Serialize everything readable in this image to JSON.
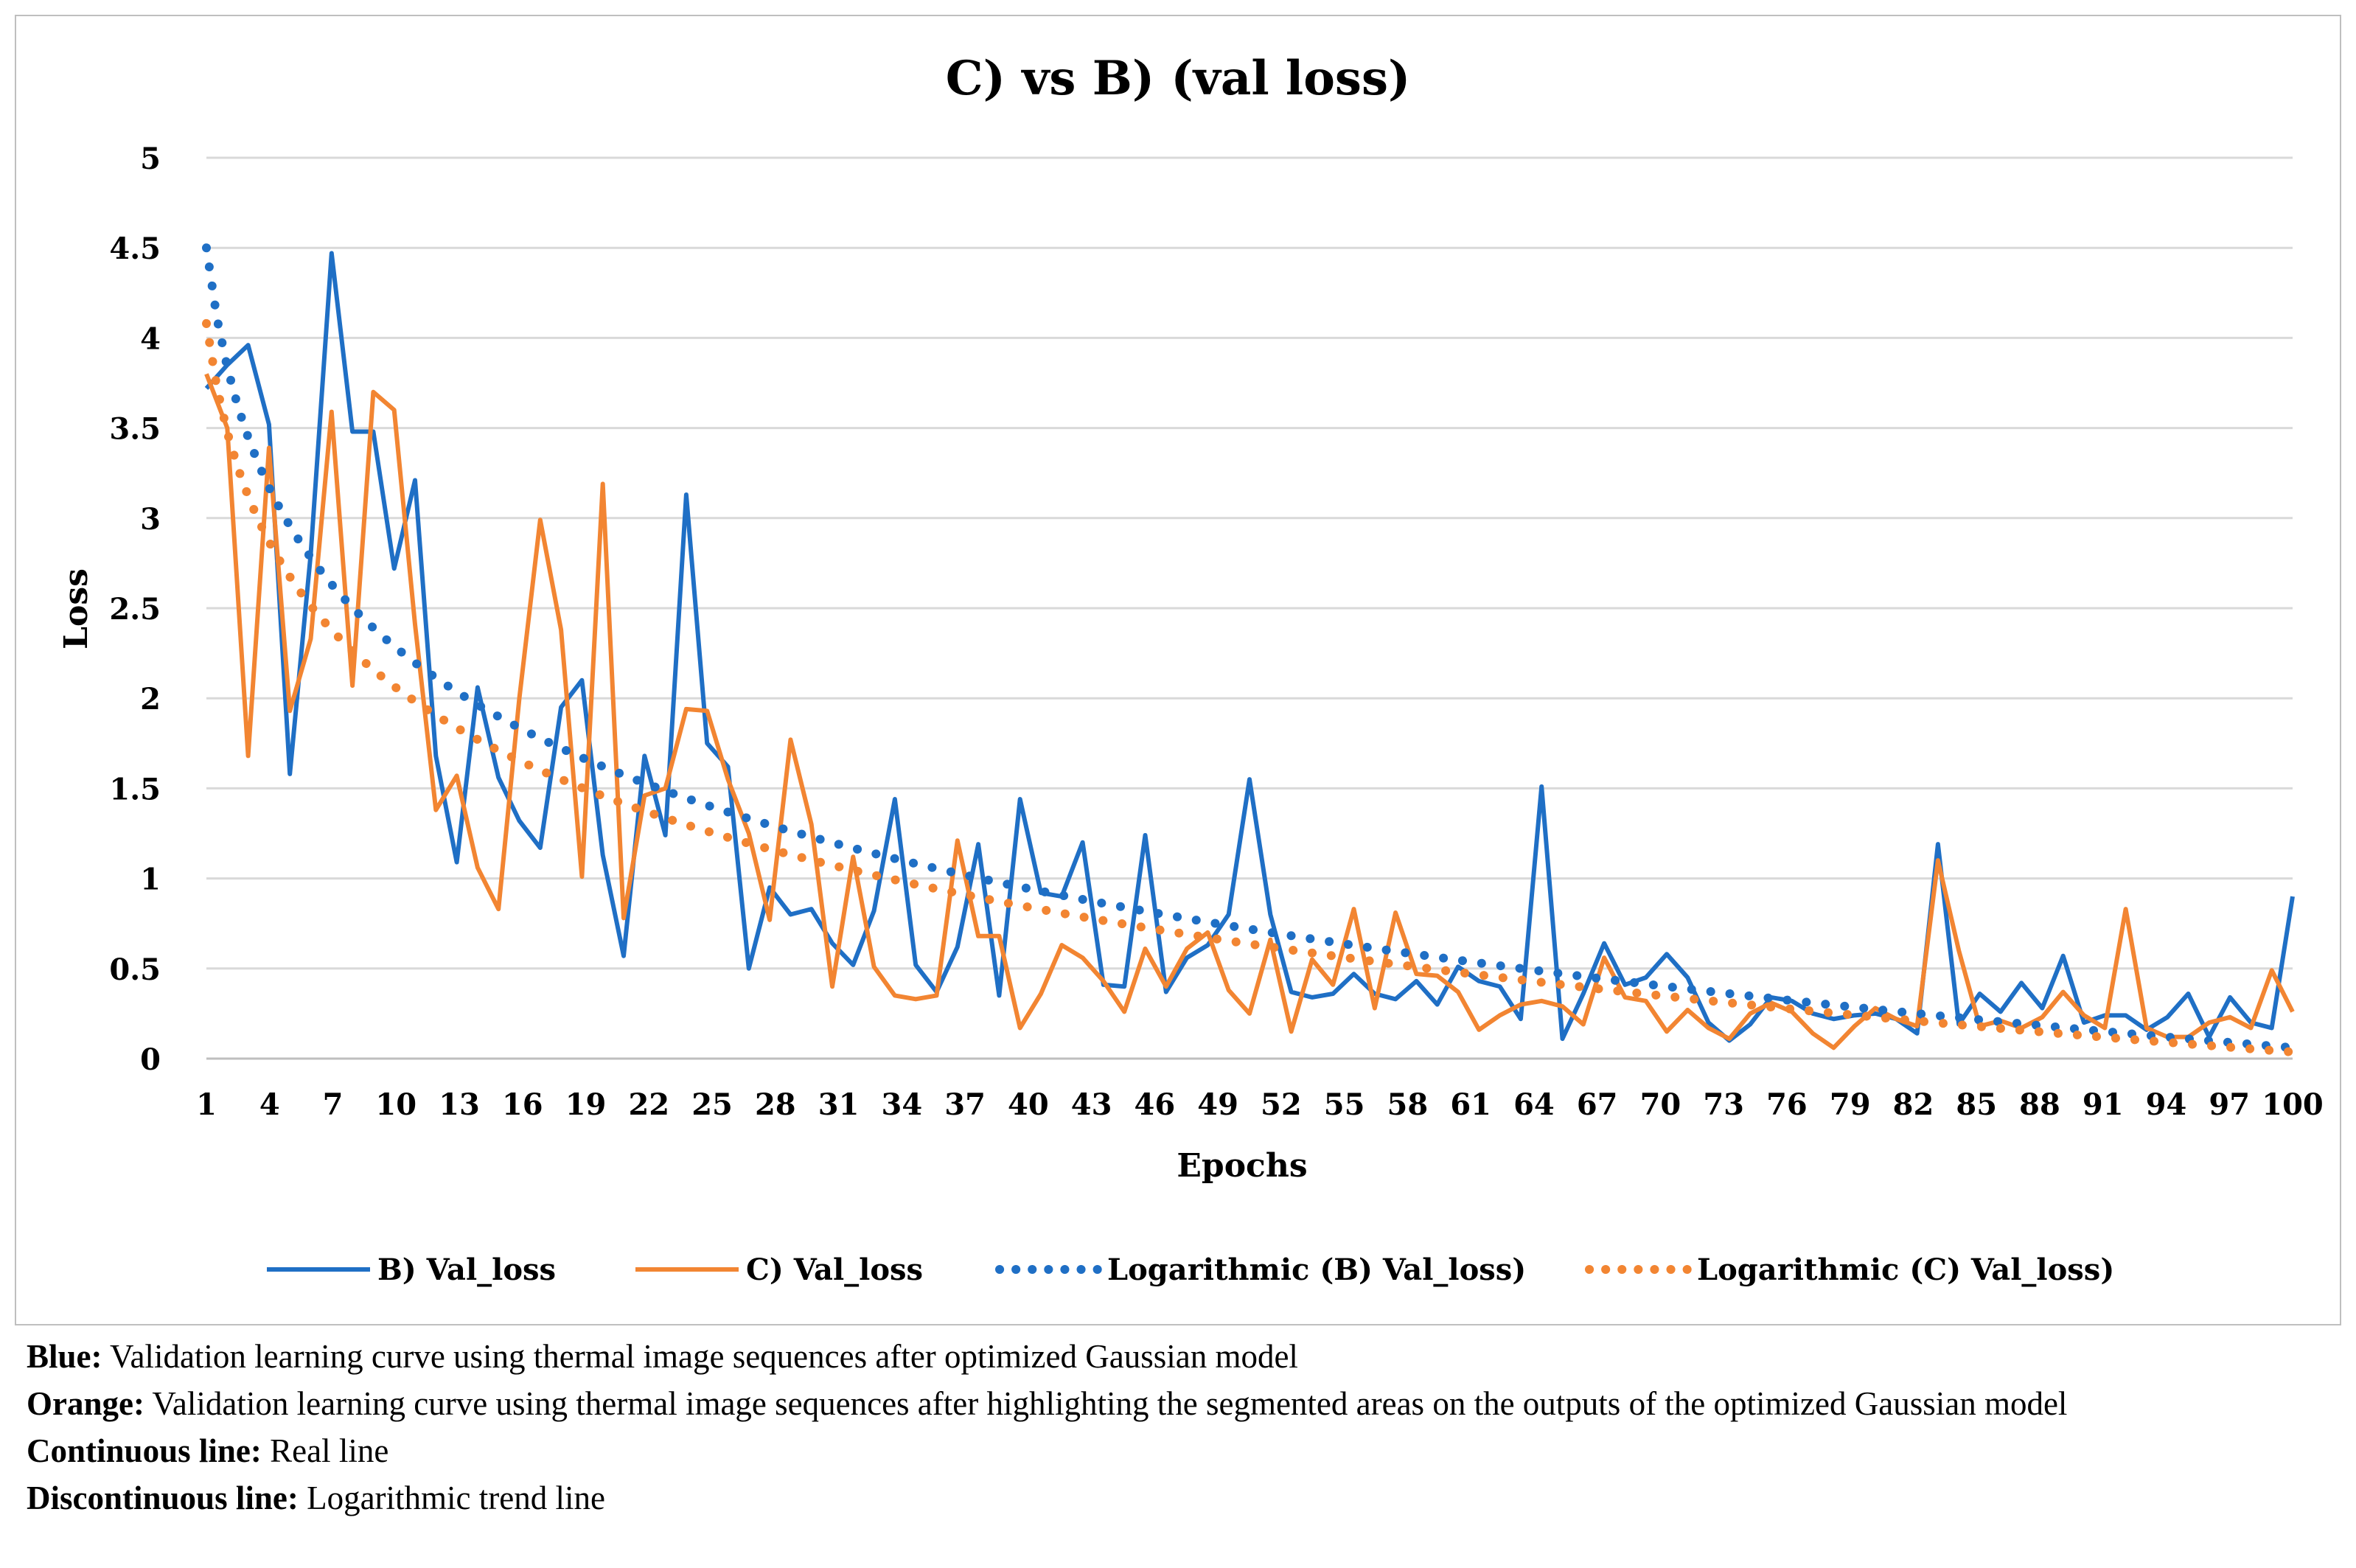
{
  "chart_data": {
    "type": "line",
    "title": "C) vs B) (val loss)",
    "xlabel": "Epochs",
    "ylabel": "Loss",
    "ylim": [
      0,
      5
    ],
    "yticks": [
      "0",
      "0.5",
      "1",
      "1.5",
      "2",
      "2.5",
      "3",
      "3.5",
      "4",
      "4.5",
      "5"
    ],
    "x_range": [
      1,
      100
    ],
    "xticks": [
      "1",
      "4",
      "7",
      "10",
      "13",
      "16",
      "19",
      "22",
      "25",
      "28",
      "31",
      "34",
      "37",
      "40",
      "43",
      "46",
      "49",
      "52",
      "55",
      "58",
      "61",
      "64",
      "67",
      "70",
      "73",
      "76",
      "79",
      "82",
      "85",
      "88",
      "91",
      "94",
      "97",
      "100"
    ],
    "grid": true,
    "legend_position": "bottom",
    "series": [
      {
        "name": "B) Val_loss",
        "color": "#1f6fc5",
        "style": "solid",
        "values": [
          3.72,
          3.85,
          3.96,
          3.52,
          1.58,
          2.8,
          4.47,
          3.48,
          3.48,
          2.72,
          3.21,
          1.68,
          1.09,
          2.06,
          1.56,
          1.32,
          1.17,
          1.95,
          2.1,
          1.13,
          0.57,
          1.68,
          1.24,
          3.13,
          1.75,
          1.62,
          0.5,
          0.95,
          0.8,
          0.83,
          0.64,
          0.52,
          0.82,
          1.44,
          0.52,
          0.37,
          0.62,
          1.19,
          0.35,
          1.44,
          0.92,
          0.9,
          1.2,
          0.41,
          0.4,
          1.24,
          0.37,
          0.56,
          0.63,
          0.8,
          1.55,
          0.8,
          0.37,
          0.34,
          0.36,
          0.47,
          0.36,
          0.33,
          0.43,
          0.3,
          0.51,
          0.43,
          0.4,
          0.22,
          1.51,
          0.11,
          0.36,
          0.64,
          0.41,
          0.45,
          0.58,
          0.45,
          0.2,
          0.1,
          0.19,
          0.34,
          0.32,
          0.25,
          0.22,
          0.24,
          0.25,
          0.22,
          0.14,
          1.19,
          0.19,
          0.36,
          0.26,
          0.42,
          0.28,
          0.57,
          0.2,
          0.24,
          0.24,
          0.16,
          0.23,
          0.36,
          0.12,
          0.34,
          0.2,
          0.17,
          0.9
        ]
      },
      {
        "name": "C) Val_loss",
        "color": "#f28532",
        "style": "solid",
        "values": [
          3.8,
          3.5,
          1.68,
          3.39,
          1.93,
          2.33,
          3.59,
          2.07,
          3.7,
          3.6,
          2.41,
          1.38,
          1.57,
          1.06,
          0.83,
          2.0,
          2.99,
          2.38,
          1.01,
          3.19,
          0.78,
          1.46,
          1.5,
          1.94,
          1.93,
          1.55,
          1.25,
          0.77,
          1.77,
          1.3,
          0.4,
          1.12,
          0.51,
          0.35,
          0.33,
          0.35,
          1.21,
          0.68,
          0.68,
          0.17,
          0.36,
          0.63,
          0.56,
          0.43,
          0.26,
          0.61,
          0.4,
          0.61,
          0.7,
          0.38,
          0.25,
          0.66,
          0.15,
          0.55,
          0.41,
          0.83,
          0.28,
          0.81,
          0.47,
          0.46,
          0.37,
          0.16,
          0.24,
          0.3,
          0.32,
          0.29,
          0.19,
          0.56,
          0.34,
          0.32,
          0.15,
          0.27,
          0.17,
          0.11,
          0.25,
          0.31,
          0.26,
          0.14,
          0.06,
          0.18,
          0.28,
          0.22,
          0.18,
          1.1,
          0.6,
          0.18,
          0.21,
          0.17,
          0.23,
          0.37,
          0.24,
          0.17,
          0.83,
          0.17,
          0.12,
          0.12,
          0.2,
          0.23,
          0.17,
          0.49,
          0.26
        ]
      },
      {
        "name": "Logarithmic (B) Val_loss)",
        "color": "#1f6fc5",
        "style": "dotted",
        "trend": "logarithmic",
        "equation": {
          "a": 4.5,
          "b": -0.964
        },
        "start_value": 4.5,
        "end_value": 0.06
      },
      {
        "name": "Logarithmic (C) Val_loss)",
        "color": "#f28532",
        "style": "dotted",
        "trend": "logarithmic",
        "equation": {
          "a": 4.08,
          "b": -0.878
        },
        "start_value": 4.08,
        "end_value": 0.04
      }
    ]
  },
  "caption": {
    "blue_label": "Blue:",
    "blue_text": " Validation learning curve using thermal image sequences after optimized Gaussian model",
    "orange_label": "Orange:",
    "orange_text": " Validation learning curve using thermal image sequences after highlighting the segmented areas on the outputs of the optimized Gaussian model",
    "continuous_label": "Continuous line:",
    "continuous_text": " Real line",
    "discontinuous_label": "Discontinuous line:",
    "discontinuous_text": " Logarithmic trend line"
  }
}
